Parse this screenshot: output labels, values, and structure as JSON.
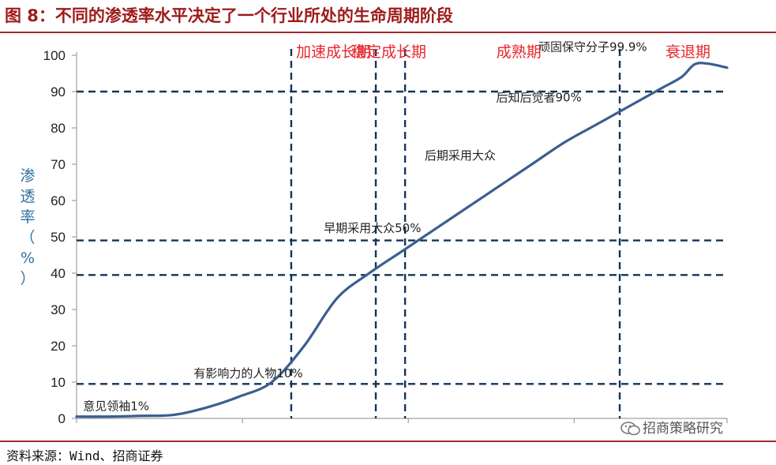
{
  "title": "图 8：不同的渗透率水平决定了一个行业所处的生命周期阶段",
  "source": "资料来源：Wind、招商证券",
  "watermark": "招商策略研究",
  "watermark_icon": "wechat-icon",
  "colors": {
    "title": "#9e1b1b",
    "rule": "#a12a2a",
    "curve": "#3a5f8f",
    "phase": "#e8262c",
    "ylabel": "#2f6f9f",
    "axis": "#a0a0a0",
    "dash": "#12355b"
  },
  "chart_data": {
    "type": "line",
    "title": "",
    "ylabel": "渗透率（%）",
    "ylabel_chars": [
      "渗",
      "透",
      "率",
      "（",
      "%",
      "）"
    ],
    "ylim": [
      0,
      100
    ],
    "yticks": [
      0,
      10,
      20,
      30,
      40,
      50,
      60,
      70,
      80,
      90,
      100
    ],
    "xlim": [
      0,
      100
    ],
    "grid": false,
    "series": [
      {
        "x": [
          0,
          5,
          10,
          15,
          20,
          25,
          30,
          35,
          40,
          45,
          50,
          55,
          60,
          65,
          70,
          75,
          80,
          85,
          90,
          93,
          95,
          97,
          100
        ],
        "values": [
          0.5,
          0.5,
          0.7,
          1.0,
          3,
          6,
          10,
          20,
          33,
          40,
          46,
          52,
          58,
          64,
          70,
          76,
          81,
          86,
          91,
          94,
          97.5,
          97.7,
          96.6
        ]
      }
    ],
    "reference_lines": {
      "horizontal": [
        9.5,
        39.5,
        49,
        90
      ],
      "vertical_x": [
        33,
        46,
        50.5,
        83.5
      ]
    },
    "phases": [
      {
        "label": "加速成长期",
        "x": 39.5
      },
      {
        "label": "稳定成长期",
        "x": 48
      },
      {
        "label": "成熟期",
        "x": 68
      },
      {
        "label": "衰退期",
        "x": 94
      }
    ],
    "annotations": [
      {
        "text": "意见领袖1%",
        "x": 1,
        "y": 1
      },
      {
        "text": "有影响力的人物10%",
        "x": 18,
        "y": 10
      },
      {
        "text": "早期采用大众50%",
        "x": 38,
        "y": 50
      },
      {
        "text": "后期采用大众",
        "x": 53.5,
        "y": 70
      },
      {
        "text": "后知后觉者90%",
        "x": 64.5,
        "y": 86
      },
      {
        "text": "顽固保守分子99.9%",
        "x": 71,
        "y": 99.9
      }
    ]
  }
}
